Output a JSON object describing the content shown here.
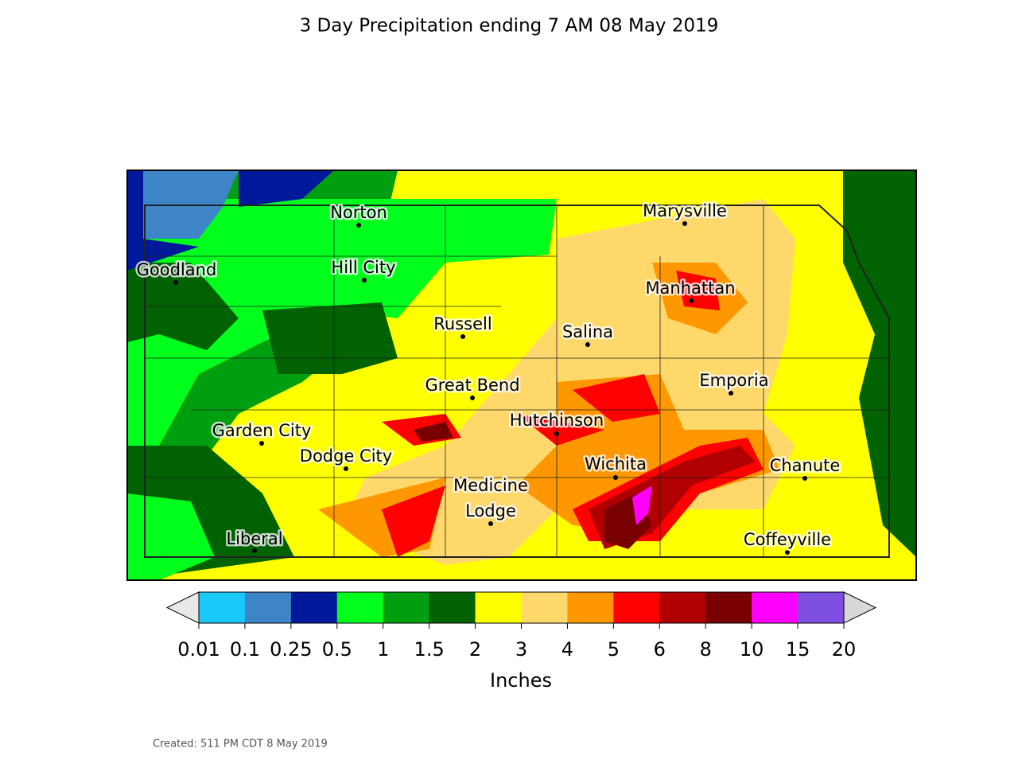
{
  "title": "3 Day Precipitation ending 7 AM 08 May 2019",
  "cities": [
    [
      "Norton"
    ],
    [
      "Marysville"
    ],
    [
      "Goodland"
    ],
    [
      "Hill City"
    ],
    [
      "Manhattan"
    ],
    [
      "Russell"
    ],
    [
      "Salina"
    ],
    [
      "Great Bend"
    ],
    [
      "Emporia"
    ],
    [
      "Hutchinson"
    ],
    [
      "Garden City"
    ],
    [
      "Dodge City"
    ],
    [
      "Wichita"
    ],
    [
      "Chanute"
    ],
    [
      "Medicine",
      "Lodge"
    ],
    [
      "Liberal"
    ],
    [
      "Coffeyville"
    ]
  ],
  "colorbar": {
    "label": "Inches",
    "boundaries": [
      0.01,
      0.1,
      0.25,
      0.5,
      1,
      1.5,
      2,
      3,
      4,
      5,
      6,
      8,
      10,
      15,
      20
    ],
    "colors": [
      "#1ac8f8",
      "#3d85c6",
      "#00199b",
      "#00ff1c",
      "#009f0f",
      "#006200",
      "#ffff00",
      "#ffd86c",
      "#ff9700",
      "#ff0000",
      "#b10000",
      "#780000",
      "#ff00ff",
      "#7e4ee0"
    ],
    "under_color": "#e8e8e8",
    "over_color": "#d8d8d8"
  },
  "footer": "Created: 511 PM CDT 8 May 2019"
}
